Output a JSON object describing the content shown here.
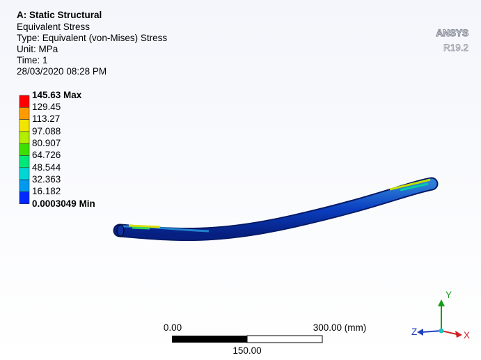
{
  "header": {
    "title": "A: Static Structural",
    "lines": [
      "Equivalent Stress",
      "Type: Equivalent (von-Mises) Stress",
      "Unit: MPa",
      "Time: 1",
      "28/03/2020 08:28 PM"
    ]
  },
  "legend": {
    "labels": [
      "145.63 Max",
      "129.45",
      "113.27",
      "97.088",
      "80.907",
      "64.726",
      "48.544",
      "32.363",
      "16.182",
      "0.0003049 Min"
    ]
  },
  "logo": {
    "name": "ANSYS",
    "version": "R19.2"
  },
  "scale_bar": {
    "start": "0.00",
    "end": "300.00 (mm)",
    "middle": "150.00"
  },
  "triad": {
    "y": "Y",
    "z": "Z",
    "x": "X"
  }
}
